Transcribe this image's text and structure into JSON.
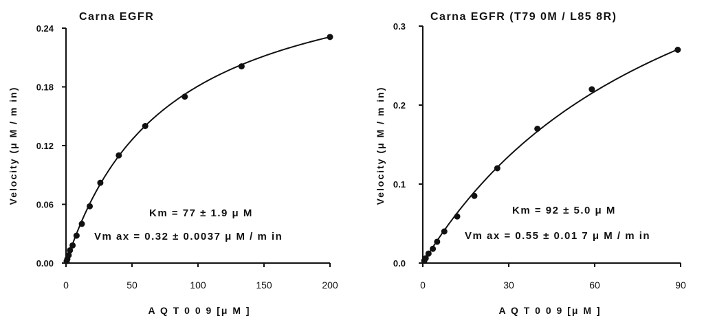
{
  "chart_data": [
    {
      "type": "scatter",
      "title": "Carna EGFR",
      "xlabel": "A Q T 0 0 9 [μ M ]",
      "ylabel": "Velocity (μ M / m in)",
      "xlim": [
        0,
        200
      ],
      "ylim": [
        0,
        0.24
      ],
      "xticks": [
        0,
        50,
        100,
        150,
        200
      ],
      "xtick_labels": [
        "0",
        "50",
        "100",
        "150",
        "200"
      ],
      "yticks": [
        0,
        0.06,
        0.12,
        0.18,
        0.24
      ],
      "ytick_labels": [
        "0.00",
        "0.06",
        "0.12",
        "0.18",
        "0.24"
      ],
      "grid": false,
      "fit": {
        "model": "michaelis-menten",
        "km": 77,
        "vmax": 0.32
      },
      "annotations": [
        "Km = 77 ± 1.9 μ M",
        "Vm ax = 0.32 ± 0.0037 μ M / m in"
      ],
      "series": [
        {
          "x": [
            0.5,
            1,
            2,
            3,
            5,
            8,
            12,
            18,
            26,
            40,
            60,
            90,
            133,
            200
          ],
          "y": [
            0.002,
            0.004,
            0.008,
            0.013,
            0.018,
            0.028,
            0.04,
            0.058,
            0.082,
            0.11,
            0.14,
            0.17,
            0.201,
            0.231
          ]
        }
      ]
    },
    {
      "type": "scatter",
      "title": "Carna EGFR (T79 0M / L85 8R)",
      "xlabel": "A Q T 0 0 9 [μ M ]",
      "ylabel": "Velocity (μ M / m in)",
      "xlim": [
        0,
        90
      ],
      "ylim": [
        0,
        0.3
      ],
      "xticks": [
        0,
        30,
        60,
        90
      ],
      "xtick_labels": [
        "0",
        "30",
        "60",
        "90"
      ],
      "yticks": [
        0,
        0.1,
        0.2,
        0.3
      ],
      "ytick_labels": [
        "0.0",
        "0.1",
        "0.2",
        "0.3"
      ],
      "grid": false,
      "fit": {
        "model": "michaelis-menten",
        "km": 92,
        "vmax": 0.55
      },
      "annotations": [
        "Km = 92 ± 5.0 μ M",
        "Vm ax = 0.55 ± 0.01 7 μ M / m in"
      ],
      "series": [
        {
          "x": [
            0.5,
            1,
            2,
            3.5,
            5,
            7.5,
            12,
            18,
            26,
            40,
            59,
            89
          ],
          "y": [
            0.003,
            0.006,
            0.012,
            0.018,
            0.027,
            0.04,
            0.059,
            0.085,
            0.12,
            0.17,
            0.22,
            0.27
          ]
        }
      ]
    }
  ]
}
